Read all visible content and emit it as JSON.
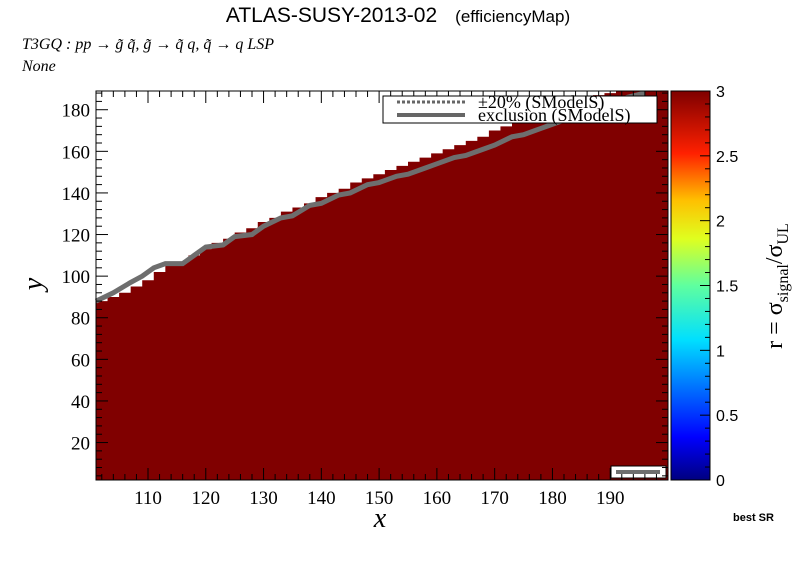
{
  "header": {
    "title": "ATLAS-SUSY-2013-02",
    "subtitle": "(efficiencyMap)",
    "process": "T3GQ : pp  → g̃ q̃, g̃ → q̃ q, q̃ → q LSP",
    "extra": "None",
    "best_sr": "best SR"
  },
  "chart_data": {
    "type": "heatmap",
    "xlabel": "x",
    "ylabel": "y",
    "xlim": [
      101,
      200
    ],
    "ylim": [
      2,
      189
    ],
    "x_ticks": [
      "110",
      "120",
      "130",
      "140",
      "150",
      "160",
      "170",
      "180",
      "190"
    ],
    "y_ticks": [
      "20",
      "40",
      "60",
      "80",
      "100",
      "120",
      "140",
      "160",
      "180"
    ],
    "colorbar": {
      "label": "r = σsignal/σUL",
      "range": [
        0,
        3
      ],
      "ticks": [
        "0",
        "0.5",
        "1",
        "1.5",
        "2",
        "2.5",
        "3"
      ]
    },
    "cell_color": "#800000",
    "fill_value": 3,
    "boundary_steps": [
      [
        101,
        88
      ],
      [
        103,
        90
      ],
      [
        105,
        92
      ],
      [
        107,
        95
      ],
      [
        109,
        98
      ],
      [
        111,
        102
      ],
      [
        113,
        105
      ],
      [
        115,
        107
      ],
      [
        117,
        110
      ],
      [
        119,
        113
      ],
      [
        121,
        116
      ],
      [
        123,
        118
      ],
      [
        125,
        121
      ],
      [
        127,
        123
      ],
      [
        129,
        126
      ],
      [
        131,
        128
      ],
      [
        133,
        131
      ],
      [
        135,
        133
      ],
      [
        137,
        135
      ],
      [
        139,
        138
      ],
      [
        141,
        140
      ],
      [
        143,
        142
      ],
      [
        145,
        145
      ],
      [
        147,
        147
      ],
      [
        149,
        149
      ],
      [
        151,
        151
      ],
      [
        153,
        153
      ],
      [
        155,
        155
      ],
      [
        157,
        157
      ],
      [
        159,
        159
      ],
      [
        161,
        161
      ],
      [
        163,
        163
      ],
      [
        165,
        165
      ],
      [
        167,
        167
      ],
      [
        169,
        170
      ],
      [
        171,
        172
      ],
      [
        173,
        174
      ],
      [
        175,
        176
      ],
      [
        177,
        178
      ],
      [
        179,
        180
      ],
      [
        181,
        183
      ],
      [
        183,
        185
      ],
      [
        185,
        186
      ],
      [
        187,
        187
      ],
      [
        189,
        188
      ],
      [
        191,
        189
      ],
      [
        200,
        189
      ]
    ],
    "exclusion_line": [
      [
        101,
        88
      ],
      [
        104,
        92
      ],
      [
        107,
        97
      ],
      [
        109,
        100
      ],
      [
        111,
        104
      ],
      [
        113,
        106
      ],
      [
        116,
        106
      ],
      [
        118,
        110
      ],
      [
        120,
        114
      ],
      [
        123,
        115
      ],
      [
        125,
        119
      ],
      [
        128,
        120
      ],
      [
        130,
        124
      ],
      [
        133,
        128
      ],
      [
        135,
        129
      ],
      [
        138,
        134
      ],
      [
        140,
        135
      ],
      [
        143,
        139
      ],
      [
        145,
        140
      ],
      [
        148,
        144
      ],
      [
        150,
        145
      ],
      [
        153,
        148
      ],
      [
        155,
        149
      ],
      [
        158,
        152
      ],
      [
        160,
        154
      ],
      [
        163,
        157
      ],
      [
        165,
        158
      ],
      [
        168,
        161
      ],
      [
        170,
        163
      ],
      [
        173,
        167
      ],
      [
        175,
        168
      ],
      [
        178,
        171
      ],
      [
        180,
        173
      ],
      [
        183,
        176
      ],
      [
        185,
        178
      ],
      [
        188,
        181
      ],
      [
        191,
        184
      ],
      [
        193,
        186
      ],
      [
        196,
        188
      ]
    ],
    "legend": {
      "position": "top-right",
      "entries": [
        {
          "label": "±20% (SModelS)",
          "style": "dotted",
          "color": "#666666"
        },
        {
          "label": "exclusion (SModelS)",
          "style": "solid",
          "color": "#666666"
        }
      ]
    }
  }
}
